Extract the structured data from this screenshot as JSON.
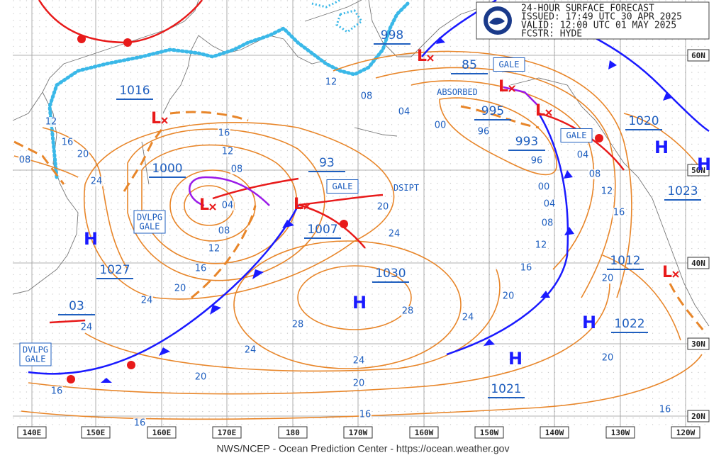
{
  "header": {
    "lines": [
      "24-HOUR SURFACE FORECAST",
      "ISSUED: 17:49 UTC 30 APR 2025",
      "VALID:  12:00 UTC 01 MAY 2025",
      "FCSTR:  HYDE"
    ]
  },
  "footer": "NWS/NCEP - Ocean Prediction Center - https://ocean.weather.gov",
  "longitude_labels": [
    "140E",
    "150E",
    "160E",
    "170E",
    "180",
    "170W",
    "160W",
    "150W",
    "140W",
    "130W",
    "120W"
  ],
  "latitude_labels": [
    "60N",
    "50N",
    "40N",
    "30N",
    "20N"
  ],
  "pressures": [
    "998",
    "85",
    "995",
    "993",
    "1016",
    "1000",
    "93",
    "1007",
    "03",
    "1027",
    "1030",
    "1020",
    "1023",
    "1012",
    "1022",
    "1021"
  ],
  "highs": [
    "H",
    "H",
    "H",
    "H",
    "H",
    "H"
  ],
  "lows": [
    "L",
    "L",
    "L",
    "L",
    "L",
    "L",
    "L"
  ],
  "isobar_labels": [
    "12",
    "08",
    "04",
    "00",
    "96",
    "96",
    "04",
    "08",
    "12",
    "16",
    "00",
    "04",
    "08",
    "12",
    "16",
    "20",
    "24",
    "28",
    "28",
    "24",
    "20",
    "16",
    "12",
    "08",
    "04",
    "08",
    "12",
    "16",
    "20",
    "24",
    "24",
    "24",
    "24",
    "20",
    "20",
    "16",
    "16",
    "16",
    "20",
    "20",
    "16",
    "16",
    "20",
    "24",
    "08",
    "12"
  ],
  "annotations": [
    [
      "GALE"
    ],
    [
      "ABSORBED"
    ],
    [
      "GALE"
    ],
    [
      "GALE"
    ],
    [
      "DSIPT"
    ],
    [
      "DVLPG",
      "GALE"
    ],
    [
      "DVLPG",
      "GALE"
    ]
  ]
}
